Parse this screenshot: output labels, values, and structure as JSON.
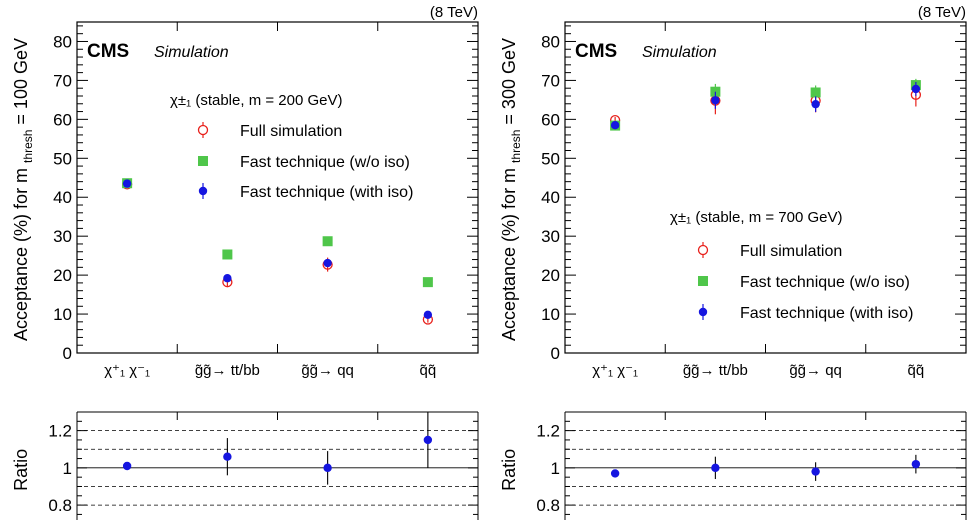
{
  "chart_data": [
    {
      "type": "scatter",
      "energy_label": "(8 TeV)",
      "cms_label": "CMS",
      "simulation_label": "Simulation",
      "ylabel_main": "Acceptance (%) for m",
      "ylabel_sub": "thresh",
      "ylabel_tail": "= 100 GeV",
      "ylim": [
        0,
        85
      ],
      "yticks": [
        "0",
        "10",
        "20",
        "30",
        "40",
        "50",
        "60",
        "70",
        "80"
      ],
      "categories": [
        "χ⁺₁ χ⁻₁",
        "g̃g̃→ tt/bb",
        "g̃g̃→ qq",
        "q̃q̃"
      ],
      "legend_title": "χ±₁ (stable, m = 200 GeV)",
      "legend_position": "top-right",
      "series": [
        {
          "name": "Full simulation",
          "color": "#e8201b",
          "marker": "open-circle",
          "values": [
            43.3,
            18.2,
            22.7,
            8.6
          ],
          "errors": [
            0.8,
            1.3,
            1.8,
            0.8
          ]
        },
        {
          "name": "Fast technique (w/o iso)",
          "color": "#4fc64a",
          "marker": "square",
          "values": [
            43.6,
            25.3,
            28.7,
            18.2
          ],
          "errors": [
            0.3,
            0.3,
            0.3,
            0.3
          ]
        },
        {
          "name": "Fast technique (with iso)",
          "color": "#1515e0",
          "marker": "filled-circle",
          "values": [
            43.5,
            19.2,
            23.1,
            9.8
          ],
          "errors": [
            0.3,
            0.3,
            0.3,
            0.3
          ]
        }
      ],
      "ratio": {
        "ylabel": "Ratio",
        "ylim": [
          0.72,
          1.3
        ],
        "yticks": [
          "0.8",
          "1",
          "1.2"
        ],
        "values": [
          1.01,
          1.06,
          1.0,
          1.15
        ],
        "errors": [
          0.02,
          0.1,
          0.09,
          0.15
        ],
        "color": "#1515e0"
      }
    },
    {
      "type": "scatter",
      "energy_label": "(8 TeV)",
      "cms_label": "CMS",
      "simulation_label": "Simulation",
      "ylabel_main": "Acceptance (%) for m",
      "ylabel_sub": "thresh",
      "ylabel_tail": "= 300 GeV",
      "ylim": [
        0,
        85
      ],
      "yticks": [
        "0",
        "10",
        "20",
        "30",
        "40",
        "50",
        "60",
        "70",
        "80"
      ],
      "categories": [
        "χ⁺₁ χ⁻₁",
        "g̃g̃→ tt/bb",
        "g̃g̃→ qq",
        "q̃q̃"
      ],
      "legend_title": "χ±₁ (stable, m = 700 GeV)",
      "legend_position": "bottom-right",
      "series": [
        {
          "name": "Full simulation",
          "color": "#e8201b",
          "marker": "open-circle",
          "values": [
            59.8,
            64.8,
            64.8,
            66.3
          ],
          "errors": [
            0.8,
            3.5,
            3.0,
            3.0
          ]
        },
        {
          "name": "Fast technique (w/o iso)",
          "color": "#4fc64a",
          "marker": "square",
          "values": [
            58.4,
            67.1,
            66.9,
            68.8
          ],
          "errors": [
            0.5,
            2.0,
            1.8,
            1.6
          ]
        },
        {
          "name": "Fast technique (with iso)",
          "color": "#1515e0",
          "marker": "filled-circle",
          "values": [
            58.5,
            64.9,
            63.9,
            67.8
          ],
          "errors": [
            0.5,
            2.2,
            2.0,
            1.8
          ]
        }
      ],
      "ratio": {
        "ylabel": "Ratio",
        "ylim": [
          0.72,
          1.3
        ],
        "yticks": [
          "0.8",
          "1",
          "1.2"
        ],
        "values": [
          0.97,
          1.0,
          0.98,
          1.02
        ],
        "errors": [
          0.01,
          0.06,
          0.05,
          0.05
        ],
        "color": "#1515e0"
      }
    }
  ]
}
